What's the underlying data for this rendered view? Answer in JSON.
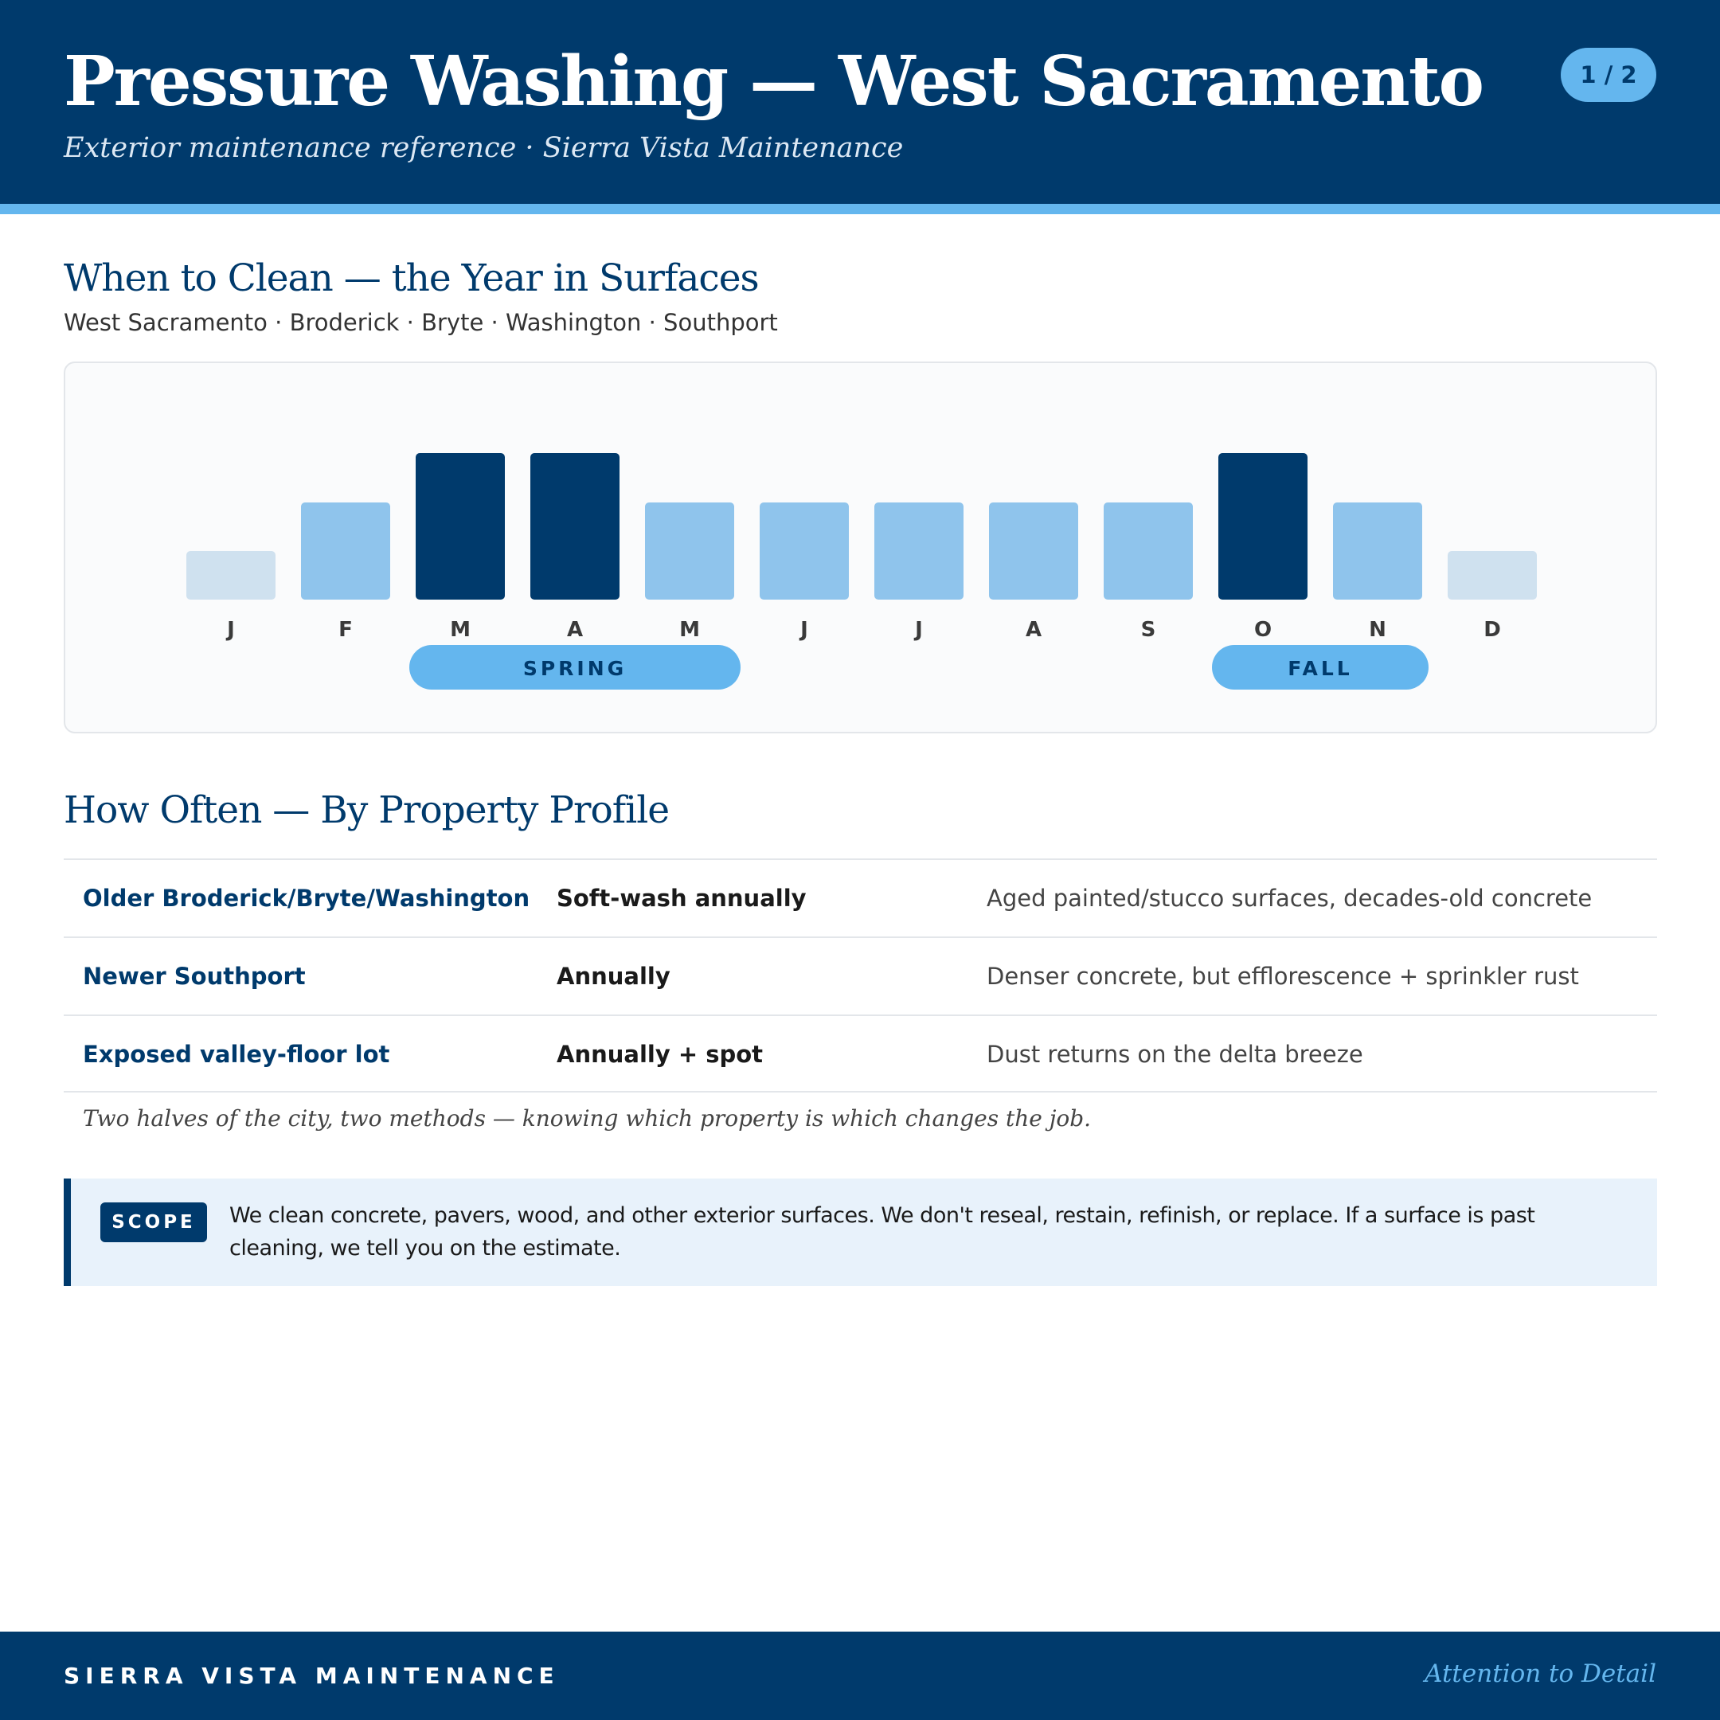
{
  "header": {
    "title": "Pressure Washing — West Sacramento",
    "subtitle": "Exterior maintenance reference · Sierra Vista Maintenance",
    "page_indicator": "1 / 2"
  },
  "timing": {
    "heading": "When to Clean — the Year in Surfaces",
    "neighborhoods": "West Sacramento · Broderick · Bryte · Washington · Southport"
  },
  "chart_data": {
    "type": "bar",
    "categories": [
      "J",
      "F",
      "M",
      "A",
      "M",
      "J",
      "J",
      "A",
      "S",
      "O",
      "N",
      "D"
    ],
    "values": [
      1,
      2,
      3,
      3,
      2,
      2,
      2,
      2,
      2,
      3,
      2,
      1
    ],
    "level_colors": {
      "1": "#CFE1EF",
      "2": "#8FC4EC",
      "3": "#003A6C"
    },
    "seasons": [
      {
        "label": "SPRING",
        "start": 2,
        "end": 4
      },
      {
        "label": "FALL",
        "start": 9,
        "end": 10
      }
    ],
    "title": "",
    "xlabel": "",
    "ylabel": "",
    "grid": false
  },
  "frequency": {
    "heading": "How Often — By Property Profile",
    "rows": [
      {
        "profile": "Older Broderick/Bryte/Washington",
        "cadence": "Soft-wash annually",
        "reason": "Aged painted/stucco surfaces, decades-old concrete"
      },
      {
        "profile": "Newer Southport",
        "cadence": "Annually",
        "reason": "Denser concrete, but efflorescence + sprinkler rust"
      },
      {
        "profile": "Exposed valley-floor lot",
        "cadence": "Annually + spot",
        "reason": "Dust returns on the delta breeze"
      }
    ],
    "note": "Two halves of the city, two methods — knowing which property is which changes the job."
  },
  "scope": {
    "label": "SCOPE",
    "text": "We clean concrete, pavers, wood, and other exterior surfaces. We don't reseal, restain, refinish, or replace. If a surface is past cleaning, we tell you on the estimate."
  },
  "footer": {
    "brand": "SIERRA VISTA MAINTENANCE",
    "tagline": "Attention to Detail"
  },
  "colors": {
    "navy": "#003A6C",
    "accent": "#64B6EE",
    "panel": "#FAFBFC",
    "scope_bg": "#E8F2FB"
  }
}
